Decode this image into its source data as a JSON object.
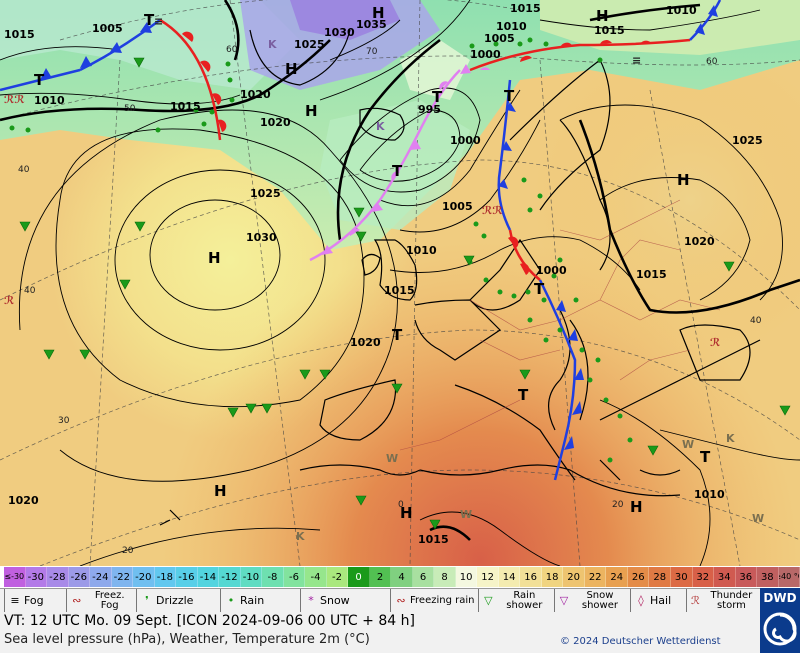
{
  "map": {
    "pressure_labels": [
      {
        "text": "1015"
      },
      {
        "text": "1005"
      },
      {
        "text": "1035"
      },
      {
        "text": "1030"
      },
      {
        "text": "1025"
      },
      {
        "text": "1015"
      },
      {
        "text": "1010"
      },
      {
        "text": "1005"
      },
      {
        "text": "1000"
      },
      {
        "text": "1015"
      },
      {
        "text": "1010"
      },
      {
        "text": "1010"
      },
      {
        "text": "1015"
      },
      {
        "text": "1020"
      },
      {
        "text": "1020"
      },
      {
        "text": "995"
      },
      {
        "text": "1000"
      },
      {
        "text": "1025"
      },
      {
        "text": "1030"
      },
      {
        "text": "1005"
      },
      {
        "text": "1010"
      },
      {
        "text": "1015"
      },
      {
        "text": "1000"
      },
      {
        "text": "1025"
      },
      {
        "text": "1020"
      },
      {
        "text": "1015"
      },
      {
        "text": "1020"
      },
      {
        "text": "1020"
      },
      {
        "text": "1015"
      },
      {
        "text": "1010"
      }
    ],
    "centers": [
      {
        "text": "H"
      },
      {
        "text": "H"
      },
      {
        "text": "T"
      },
      {
        "text": "H"
      },
      {
        "text": "H"
      },
      {
        "text": "T"
      },
      {
        "text": "T"
      },
      {
        "text": "H"
      },
      {
        "text": "H"
      },
      {
        "text": "H"
      },
      {
        "text": "T"
      },
      {
        "text": "T"
      },
      {
        "text": "T"
      },
      {
        "text": "T"
      },
      {
        "text": "T"
      },
      {
        "text": "H"
      },
      {
        "text": "H"
      },
      {
        "text": "T"
      }
    ],
    "latitude_labels": [
      {
        "text": "60"
      },
      {
        "text": "70"
      },
      {
        "text": "50"
      },
      {
        "text": "40"
      },
      {
        "text": "60"
      },
      {
        "text": "40"
      },
      {
        "text": "30"
      },
      {
        "text": "20"
      },
      {
        "text": "0"
      },
      {
        "text": "20"
      },
      {
        "text": "40"
      }
    ],
    "colors": {
      "cold_front": "#1f3fe0",
      "warm_front": "#e82020",
      "occluded_front": "#e080f0",
      "rain_dot": "#1a9a1a",
      "isobar": "#000000"
    }
  },
  "temperature_scale": {
    "values": [
      "≤-30",
      "-30",
      "-28",
      "-26",
      "-24",
      "-22",
      "-20",
      "-18",
      "-16",
      "-14",
      "-12",
      "-10",
      "-8",
      "-6",
      "-4",
      "-2",
      "0",
      "2",
      "4",
      "6",
      "8",
      "10",
      "12",
      "14",
      "16",
      "18",
      "20",
      "22",
      "24",
      "26",
      "28",
      "30",
      "32",
      "34",
      "36",
      "38",
      "≥40 °C"
    ],
    "colors": [
      "#c060e0",
      "#b37ae8",
      "#a88ae8",
      "#9c9ae8",
      "#8ea9ec",
      "#7fb5ef",
      "#70bff0",
      "#62c8ef",
      "#58cfe8",
      "#52d4df",
      "#55d8d2",
      "#5fdcc2",
      "#6ee0b0",
      "#82e39e",
      "#96e68c",
      "#aae87e",
      "#1a9a1a",
      "#52c052",
      "#80d080",
      "#a8e0a0",
      "#c8ecb8",
      "#f4f8e0",
      "#f6f4c8",
      "#f4ecb0",
      "#f2e098",
      "#f0d480",
      "#eec470",
      "#ecb460",
      "#e8a050",
      "#e48c48",
      "#e07a44",
      "#dc6a44",
      "#d86048",
      "#d05a50",
      "#c85a5a",
      "#c06060",
      "#b86868"
    ]
  },
  "legend": {
    "items": [
      {
        "symbol": "≡",
        "label": "Fog"
      },
      {
        "symbol": "∾",
        "label": "Freez. Fog"
      },
      {
        "symbol": "❜",
        "label": "Drizzle"
      },
      {
        "symbol": "•",
        "label": "Rain"
      },
      {
        "symbol": "*",
        "label": "Snow"
      },
      {
        "symbol": "∾",
        "label": "Freezing rain"
      },
      {
        "symbol": "▽",
        "label": "Rain shower"
      },
      {
        "symbol": "▽",
        "label": "Snow shower"
      },
      {
        "symbol": "◊",
        "label": "Hail"
      },
      {
        "symbol": "ℛ",
        "label": "Thunder storm"
      }
    ]
  },
  "footer": {
    "valid_time": "VT: 12 UTC Mo.  09 Sept. [ICON 2024-09-06  00 UTC + 84 h]",
    "subtitle": "Sea level pressure (hPa), Weather, Temperature 2m (°C)",
    "copyright": "© 2024 Deutscher Wetterdienst",
    "brand": "DWD"
  }
}
